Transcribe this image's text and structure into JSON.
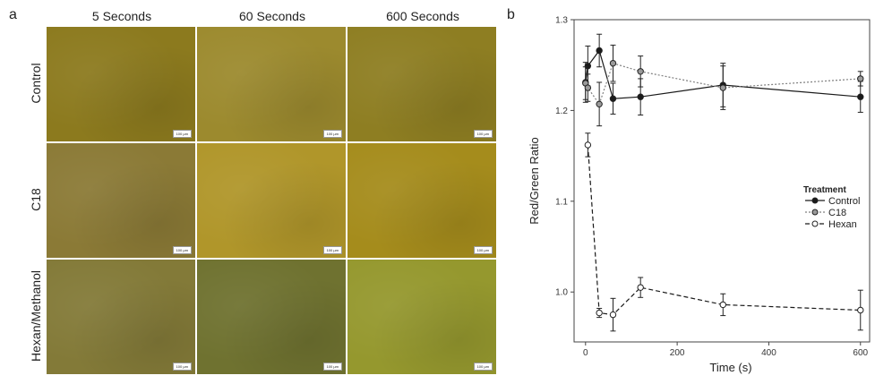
{
  "panel_a": {
    "label": "a",
    "columns": [
      "5 Seconds",
      "60 Seconds",
      "600 Seconds"
    ],
    "rows": [
      "Control",
      "C18",
      "Hexan/Methanol"
    ],
    "scale_bar": "100 µm",
    "tile_colors": [
      [
        "#8c7a1e",
        "#9c8a2e",
        "#8e7e22"
      ],
      [
        "#8b7a36",
        "#b0962a",
        "#a58c1c"
      ],
      [
        "#837a38",
        "#6f7230",
        "#95982e"
      ]
    ]
  },
  "panel_b": {
    "label": "b",
    "chart_data": {
      "type": "line",
      "xlabel": "Time (s)",
      "ylabel": "Red/Green Ratio",
      "xlim": [
        -25,
        620
      ],
      "ylim": [
        0.945,
        1.3
      ],
      "xticks": [
        0,
        200,
        400,
        600
      ],
      "yticks": [
        1.0,
        1.1,
        1.2,
        1.3
      ],
      "grid": false,
      "legend": {
        "title": "Treatment",
        "position": "right"
      },
      "series": [
        {
          "name": "Control",
          "marker": "filled",
          "line": "solid",
          "color": "#1a1a1a",
          "x": [
            0,
            5,
            30,
            60,
            120,
            300,
            600
          ],
          "y": [
            1.231,
            1.249,
            1.266,
            1.213,
            1.215,
            1.228,
            1.215
          ],
          "err": [
            0.022,
            0.022,
            0.018,
            0.017,
            0.02,
            0.024,
            0.017
          ]
        },
        {
          "name": "C18",
          "marker": "gray",
          "line": "dotted",
          "color": "#808080",
          "x": [
            0,
            5,
            30,
            60,
            120,
            300,
            600
          ],
          "y": [
            1.23,
            1.225,
            1.207,
            1.252,
            1.243,
            1.225,
            1.235
          ],
          "err": [
            0.018,
            0.015,
            0.024,
            0.02,
            0.017,
            0.024,
            0.008
          ]
        },
        {
          "name": "Hexan",
          "marker": "open",
          "line": "dashed",
          "color": "#1a1a1a",
          "x": [
            5,
            30,
            60,
            120,
            300,
            600
          ],
          "y": [
            1.162,
            0.977,
            0.975,
            1.005,
            0.986,
            0.98
          ],
          "err": [
            0.013,
            0.005,
            0.018,
            0.011,
            0.012,
            0.022
          ]
        }
      ]
    }
  }
}
